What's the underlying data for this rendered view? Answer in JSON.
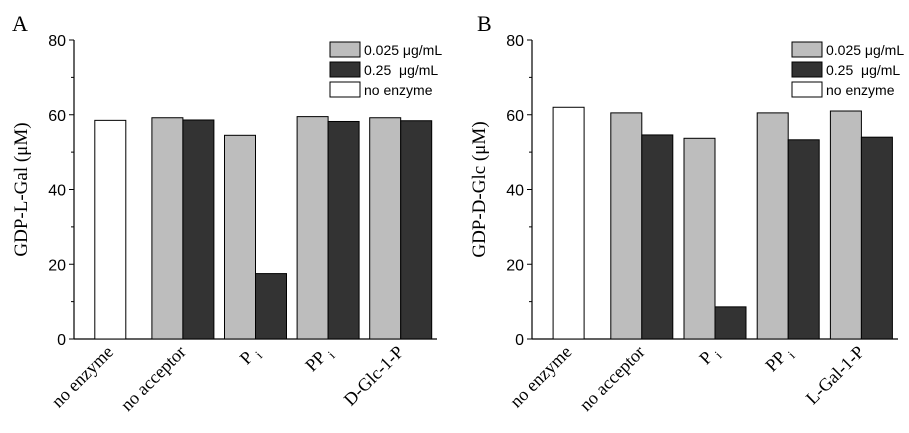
{
  "chart_data": [
    {
      "type": "bar",
      "panel_label": "A",
      "ylabel": "GDP-L-Gal (μM)",
      "ylim": [
        0,
        80
      ],
      "yticks": [
        0,
        20,
        40,
        60,
        80
      ],
      "categories": [
        "no enzyme",
        "no acceptor",
        "Pi",
        "PPi",
        "D-Glc-1-P"
      ],
      "category_labels": [
        {
          "main": "no enzyme",
          "sub": ""
        },
        {
          "main": "no acceptor",
          "sub": ""
        },
        {
          "main": "P",
          "sub": "i"
        },
        {
          "main": "PP",
          "sub": "i"
        },
        {
          "main": "D-Glc-1-P",
          "sub": ""
        }
      ],
      "series": [
        {
          "name": "0.025 μg/mL",
          "color": "#bdbdbd",
          "values": [
            null,
            59.2,
            54.5,
            59.5,
            59.2
          ]
        },
        {
          "name": "0.25  μg/mL",
          "color": "#333333",
          "values": [
            null,
            58.6,
            17.5,
            58.2,
            58.4
          ]
        },
        {
          "name": "no enzyme",
          "color": "#ffffff",
          "values": [
            58.5,
            null,
            null,
            null,
            null
          ]
        }
      ],
      "legend": "top-right",
      "grid": false
    },
    {
      "type": "bar",
      "panel_label": "B",
      "ylabel": "GDP-D-Glc (μM)",
      "ylim": [
        0,
        80
      ],
      "yticks": [
        0,
        20,
        40,
        60,
        80
      ],
      "categories": [
        "no enzyme",
        "no acceptor",
        "Pi",
        "PPi",
        "L-Gal-1-P"
      ],
      "category_labels": [
        {
          "main": "no enzyme",
          "sub": ""
        },
        {
          "main": "no acceptor",
          "sub": ""
        },
        {
          "main": "P",
          "sub": "i"
        },
        {
          "main": "PP",
          "sub": "i"
        },
        {
          "main": "L-Gal-1-P",
          "sub": ""
        }
      ],
      "series": [
        {
          "name": "0.025 μg/mL",
          "color": "#bdbdbd",
          "values": [
            null,
            60.5,
            53.7,
            60.5,
            61.0
          ]
        },
        {
          "name": "0.25  μg/mL",
          "color": "#333333",
          "values": [
            null,
            54.6,
            8.6,
            53.3,
            54.0
          ]
        },
        {
          "name": "no enzyme",
          "color": "#ffffff",
          "values": [
            62.0,
            null,
            null,
            null,
            null
          ]
        }
      ],
      "legend": "top-right",
      "grid": false
    }
  ]
}
